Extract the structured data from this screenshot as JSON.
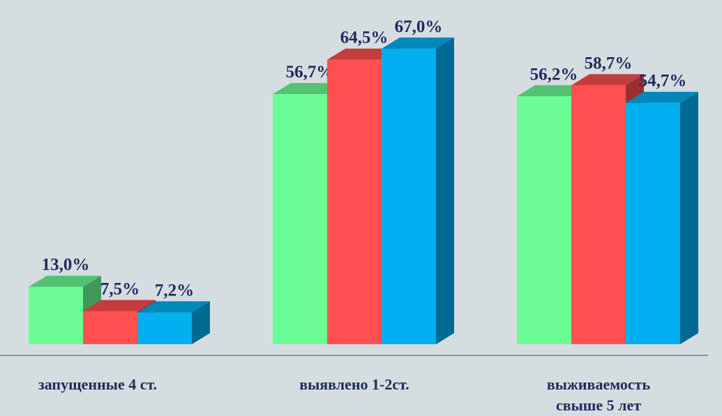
{
  "chart_data": {
    "type": "bar3d",
    "categories": [
      "запущенные 4 ст.",
      "выявлено 1-2ст.",
      "выживаемость свыше 5 лет"
    ],
    "series": [
      {
        "color": "#6cfc95",
        "values": [
          13.0,
          56.7,
          56.2
        ],
        "value_labels": [
          "13,0%",
          "56,7%",
          "56,2%"
        ]
      },
      {
        "color": "#ff4f4f",
        "values": [
          7.5,
          64.5,
          58.7
        ],
        "value_labels": [
          "7,5%",
          "64,5%",
          "58,7%"
        ]
      },
      {
        "color": "#00b0f0",
        "values": [
          7.2,
          67.0,
          54.7
        ],
        "value_labels": [
          "7,2%",
          "67,0%",
          "54,7%"
        ]
      }
    ]
  }
}
